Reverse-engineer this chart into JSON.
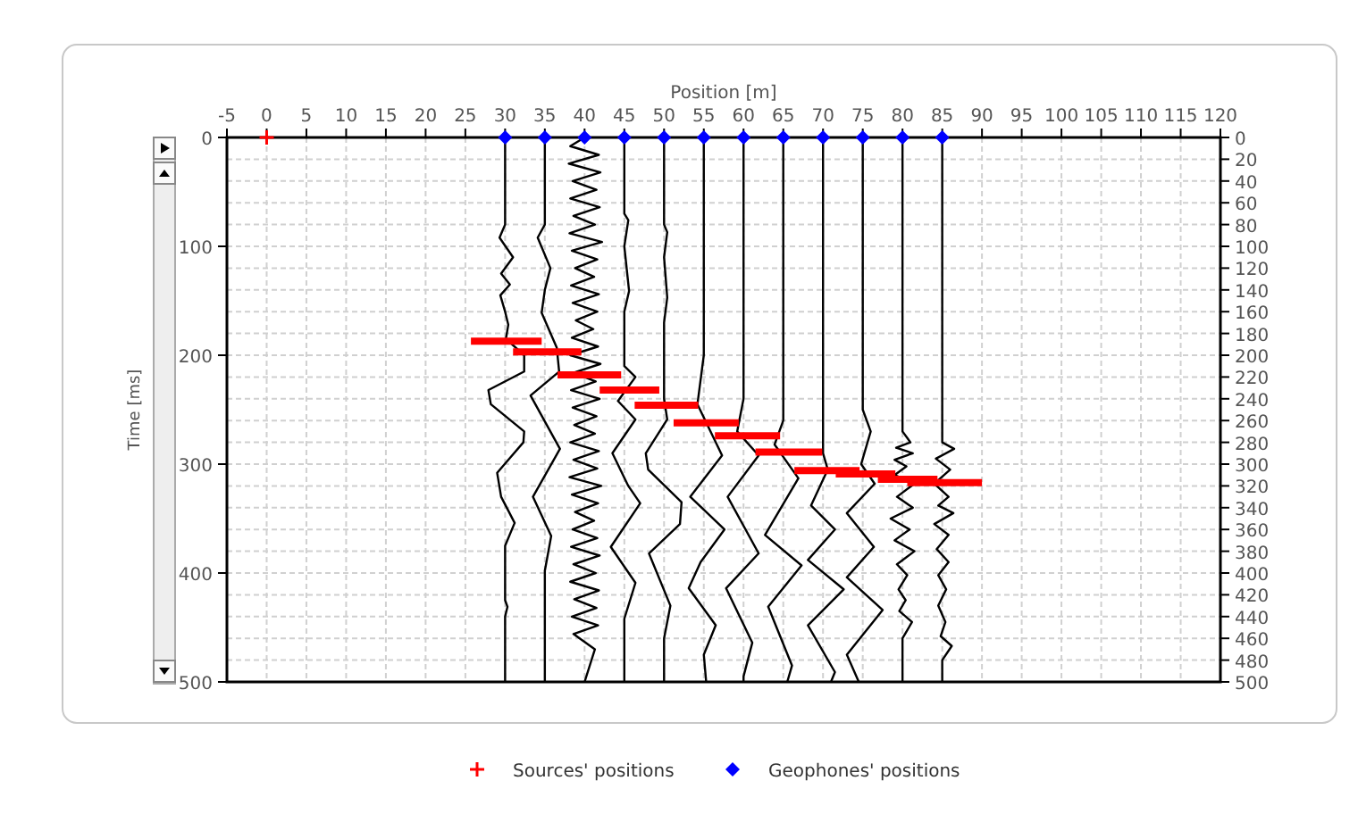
{
  "chart_data": {
    "type": "line",
    "xlabel": "Position [m]",
    "ylabel": "Time [ms]",
    "xlim": [
      -5,
      120
    ],
    "xticks": [
      -5,
      0,
      5,
      10,
      15,
      20,
      25,
      30,
      35,
      40,
      45,
      50,
      55,
      60,
      65,
      70,
      75,
      80,
      85,
      90,
      95,
      100,
      105,
      110,
      115,
      120
    ],
    "ylim": [
      500,
      0
    ],
    "yticks": [
      0,
      100,
      200,
      300,
      400,
      500
    ],
    "y2lim": [
      500,
      0
    ],
    "y2ticks": [
      0,
      20,
      40,
      60,
      80,
      100,
      120,
      140,
      160,
      180,
      200,
      220,
      240,
      260,
      280,
      300,
      320,
      340,
      360,
      380,
      400,
      420,
      440,
      460,
      480,
      500
    ],
    "grid": true,
    "legend": "bottom",
    "line_style": "solid",
    "series": [
      {
        "color": "#000000",
        "marker": "none",
        "x": [
          30,
          30,
          29.3,
          31,
          29.5,
          30.6,
          29.4,
          30,
          30.4,
          30.1,
          32.4,
          32.4,
          27.9,
          28.2,
          32.4,
          32.3,
          29,
          29.5,
          31.2,
          30,
          30,
          30.3,
          30,
          30
        ],
        "values": [
          0,
          80,
          92,
          110,
          125,
          135,
          145,
          160,
          172,
          185,
          200,
          215,
          232,
          245,
          270,
          280,
          308,
          330,
          354,
          375,
          425,
          431,
          440,
          500
        ]
      },
      {
        "color": "#000000",
        "marker": "none",
        "x": [
          35,
          35,
          34.1,
          35.7,
          35,
          34.6,
          36.5,
          36.8,
          33.2,
          36.9,
          33.5,
          35.8,
          35,
          35
        ],
        "values": [
          0,
          80,
          92,
          120,
          140,
          161,
          193,
          215,
          237,
          286,
          330,
          366,
          398,
          500
        ]
      },
      {
        "color": "#000000",
        "marker": "none",
        "x": [
          40,
          38.2,
          41.8,
          38,
          42,
          38.5,
          41.5,
          38.2,
          41.9,
          38.6,
          41.3,
          38.1,
          42.2,
          38.4,
          41.6,
          38.8,
          41.2,
          38.3,
          41.8,
          38.5,
          41.6,
          38.9,
          41.1,
          38.4,
          41.7,
          38.2,
          42,
          38.6,
          41.4,
          38.3,
          41.9,
          38.5,
          41.5,
          38.7,
          41.3,
          38.2,
          41.8,
          38.6,
          41.6,
          38.1,
          42.1,
          38.4,
          41.7,
          38.8,
          41.2,
          38.5,
          41.6,
          38.3,
          41.9,
          38.6,
          41.4,
          38.2,
          41.8,
          38.7,
          41.5,
          38.4,
          41.7,
          38.6,
          41.3,
          40
        ],
        "values": [
          0,
          8,
          16,
          24,
          32,
          40,
          48,
          56,
          64,
          72,
          80,
          88,
          96,
          104,
          112,
          120,
          128,
          136,
          144,
          152,
          160,
          168,
          176,
          184,
          192,
          200,
          208,
          216,
          224,
          232,
          240,
          248,
          256,
          264,
          272,
          280,
          288,
          296,
          304,
          312,
          320,
          328,
          336,
          344,
          352,
          360,
          368,
          376,
          384,
          392,
          400,
          408,
          416,
          424,
          432,
          440,
          448,
          456,
          470,
          500
        ]
      },
      {
        "color": "#000000",
        "marker": "none",
        "x": [
          45,
          45,
          45.5,
          45,
          45.6,
          45,
          45,
          46.4,
          44.2,
          46.4,
          43.5,
          45.5,
          47,
          43.3,
          46.4,
          45,
          45
        ],
        "values": [
          0,
          70,
          76,
          100,
          141,
          160,
          210,
          220,
          242,
          259,
          290,
          320,
          336,
          376,
          409,
          442,
          500
        ]
      },
      {
        "color": "#000000",
        "marker": "none",
        "x": [
          50,
          50,
          50.4,
          50,
          50.4,
          50,
          50,
          50.4,
          47.7,
          48,
          52.2,
          52,
          48.1,
          50.8,
          50,
          50
        ],
        "values": [
          0,
          80,
          87,
          110,
          147,
          170,
          240,
          259,
          290,
          305,
          335,
          355,
          382,
          430,
          460,
          500
        ]
      },
      {
        "color": "#000000",
        "marker": "none",
        "x": [
          55,
          55,
          54.2,
          57.3,
          53.3,
          57.6,
          54.6,
          53.1,
          56.5,
          55,
          55.3
        ],
        "values": [
          0,
          200,
          245,
          292,
          330,
          360,
          390,
          414,
          448,
          475,
          500
        ]
      },
      {
        "color": "#000000",
        "marker": "none",
        "x": [
          60,
          60,
          59.2,
          61.9,
          58,
          61.9,
          57.8,
          61.1,
          60,
          60
        ],
        "values": [
          0,
          240,
          270,
          292,
          330,
          382,
          414,
          464,
          495,
          500
        ]
      },
      {
        "color": "#000000",
        "marker": "none",
        "x": [
          65,
          65,
          63.9,
          66.9,
          62.7,
          67.3,
          63.1,
          66.1,
          65.5
        ],
        "values": [
          0,
          260,
          282,
          313,
          365,
          393,
          431,
          485,
          500
        ]
      },
      {
        "color": "#000000",
        "marker": "none",
        "x": [
          70,
          70,
          70.6,
          68.5,
          71.5,
          68.1,
          72.6,
          68.1,
          71.5,
          71
        ],
        "values": [
          0,
          290,
          305,
          338,
          360,
          388,
          415,
          448,
          491,
          500
        ]
      },
      {
        "color": "#000000",
        "marker": "none",
        "x": [
          75,
          75,
          76,
          74.8,
          76.5,
          73,
          76.4,
          73,
          77.5,
          73,
          74.5
        ],
        "values": [
          0,
          250,
          270,
          300,
          318,
          345,
          376,
          404,
          434,
          475,
          500
        ]
      },
      {
        "color": "#000000",
        "marker": "none",
        "x": [
          80,
          80,
          81,
          79.2,
          81.3,
          79,
          80.5,
          79,
          81.5,
          79.3,
          81.3,
          78.5,
          80.9,
          79,
          81.5,
          79.3,
          80.6,
          79.5,
          80.4,
          79.6,
          81.2,
          80,
          80
        ],
        "values": [
          0,
          270,
          280,
          285,
          290,
          296,
          302,
          310,
          318,
          330,
          340,
          350,
          360,
          370,
          380,
          392,
          402,
          415,
          425,
          435,
          445,
          460,
          500
        ]
      },
      {
        "color": "#000000",
        "marker": "none",
        "x": [
          85,
          85,
          86.5,
          84.2,
          86,
          84,
          85.8,
          84.5,
          86.4,
          84,
          85.8,
          84.3,
          85.8,
          84.5,
          85.5,
          84.5,
          85.4,
          84.8,
          86.2,
          85,
          85
        ],
        "values": [
          0,
          280,
          286,
          295,
          305,
          318,
          330,
          338,
          345,
          355,
          365,
          378,
          390,
          402,
          415,
          430,
          445,
          458,
          467,
          480,
          500
        ]
      },
      {
        "color": "#ff0000",
        "marker": "none",
        "x": [
          25.7,
          34.6,
          null,
          31,
          39.6,
          null,
          36.6,
          44.6,
          null,
          41.9,
          49.4,
          null,
          46.3,
          54.3,
          null,
          51.2,
          59.4,
          null,
          56.4,
          64.6,
          null,
          61.5,
          69.9,
          null,
          66.4,
          74.6,
          null,
          71.6,
          79.1,
          null,
          76.9,
          84.4,
          null,
          80.6,
          90
        ],
        "values": [
          187,
          187,
          null,
          197,
          197,
          null,
          218,
          218,
          null,
          232,
          232,
          null,
          246,
          246,
          null,
          262,
          262,
          null,
          274,
          274,
          null,
          289,
          289,
          null,
          306,
          306,
          null,
          309,
          309,
          null,
          314,
          314,
          null,
          317,
          317
        ]
      },
      {
        "type": "scatter",
        "name": "Sources' positions",
        "color": "#ff0000",
        "marker": "cross",
        "x": [
          0
        ],
        "values": [
          0
        ]
      },
      {
        "type": "scatter",
        "name": "Geophones' positions",
        "color": "#0000ff",
        "marker": "diamond",
        "x": [
          30,
          35,
          40,
          45,
          50,
          55,
          60,
          65,
          70,
          75,
          80,
          85
        ],
        "values": [
          0,
          0,
          0,
          0,
          0,
          0,
          0,
          0,
          0,
          0,
          0,
          0
        ]
      }
    ]
  }
}
